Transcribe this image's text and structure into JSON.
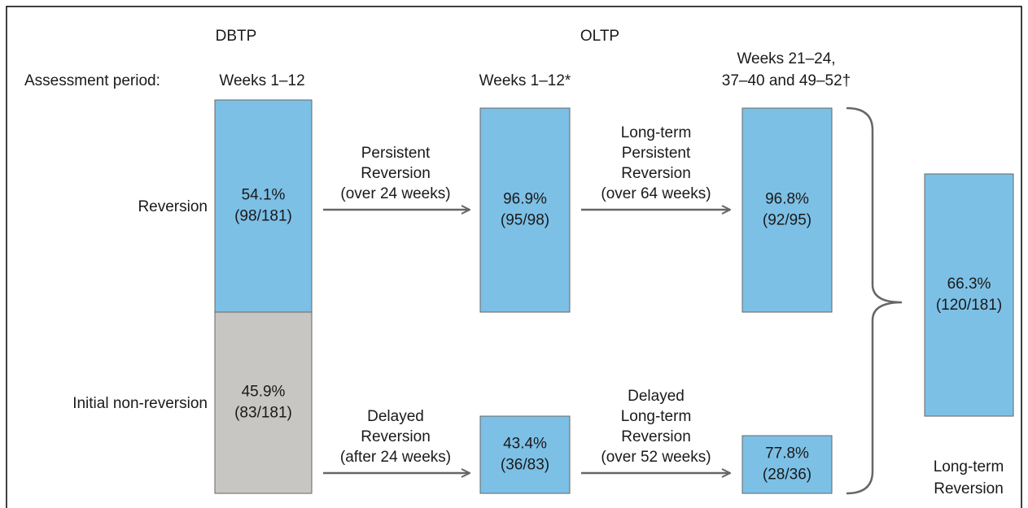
{
  "periods": {
    "dbtp": "DBTP",
    "oltp": "OLTP"
  },
  "assessment": {
    "label": "Assessment period:",
    "columns": [
      [
        "Weeks 1–12"
      ],
      [
        "Weeks 1–12*"
      ],
      [
        "Weeks 21–24,",
        "37–40 and 49–52†"
      ]
    ]
  },
  "rows": [
    "Reversion",
    "Initial non-reversion"
  ],
  "boxes": [
    {
      "percent": "54.1%",
      "fraction": "(98/181)"
    },
    {
      "percent": "45.9%",
      "fraction": "(83/181)"
    },
    {
      "percent": "96.9%",
      "fraction": "(95/98)"
    },
    {
      "percent": "43.4%",
      "fraction": "(36/83)"
    },
    {
      "percent": "96.8%",
      "fraction": "(92/95)"
    },
    {
      "percent": "77.8%",
      "fraction": "(28/36)"
    },
    {
      "percent": "66.3%",
      "fraction": "(120/181)"
    }
  ],
  "transitions": [
    [
      "Persistent",
      "Reversion",
      "(over 24 weeks)"
    ],
    [
      "Long-term",
      "Persistent",
      "Reversion",
      "(over 64 weeks)"
    ],
    [
      "Delayed",
      "Reversion",
      "(after 24 weeks)"
    ],
    [
      "Delayed",
      "Long-term",
      "Reversion",
      "(over 52 weeks)"
    ]
  ],
  "summary_label": [
    "Long-term",
    "Reversion"
  ]
}
